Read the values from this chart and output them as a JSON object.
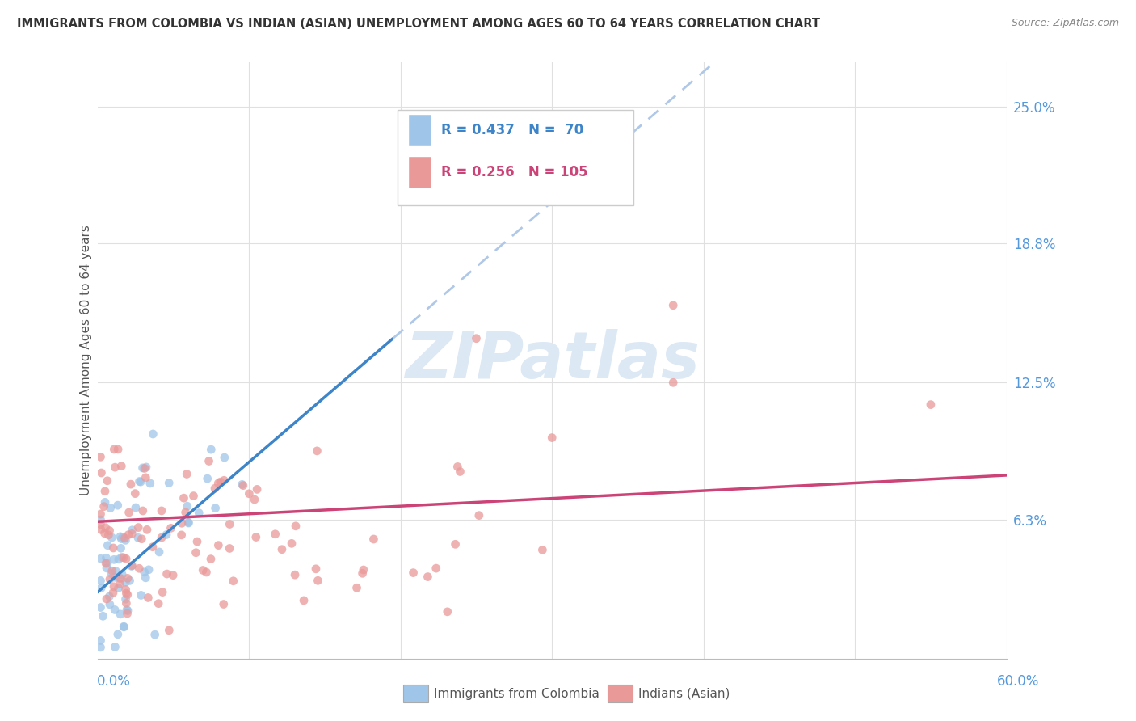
{
  "title": "IMMIGRANTS FROM COLOMBIA VS INDIAN (ASIAN) UNEMPLOYMENT AMONG AGES 60 TO 64 YEARS CORRELATION CHART",
  "source": "Source: ZipAtlas.com",
  "ylabel": "Unemployment Among Ages 60 to 64 years",
  "ytick_labels": [
    "6.3%",
    "12.5%",
    "18.8%",
    "25.0%"
  ],
  "ytick_values": [
    0.063,
    0.125,
    0.188,
    0.25
  ],
  "colombia_legend": "Immigrants from Colombia",
  "indian_legend": "Indians (Asian)",
  "xlim": [
    0.0,
    0.6
  ],
  "ylim": [
    0.0,
    0.27
  ],
  "colombia_color": "#9fc5e8",
  "india_color": "#ea9999",
  "colombia_line_color": "#3d85c8",
  "india_line_color": "#cc4477",
  "dashed_line_color": "#b0c8e8",
  "colombia_R": 0.437,
  "colombia_N": 70,
  "indian_R": 0.256,
  "indian_N": 105,
  "background_color": "#ffffff",
  "grid_color": "#e0e0e0",
  "watermark_color": "#dde8f5",
  "title_color": "#333333",
  "source_color": "#888888",
  "axis_label_color": "#555555",
  "right_axis_color": "#5599dd"
}
